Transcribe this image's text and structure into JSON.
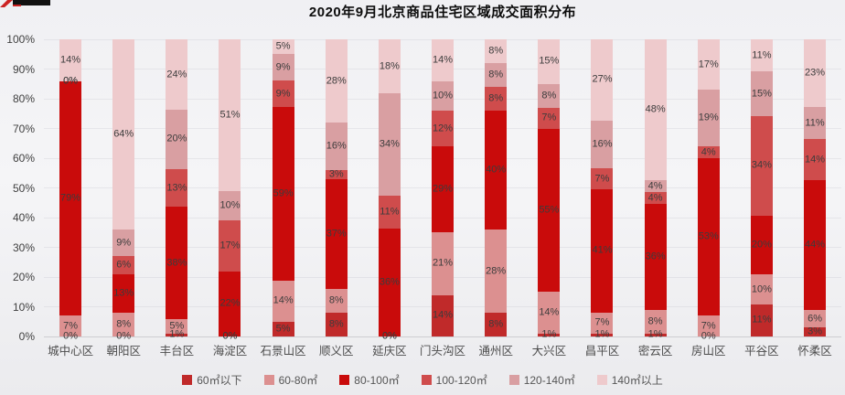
{
  "title": "2020年9月北京商品住宅区域成交面积分布",
  "y_axis": {
    "ticks": [
      "100%",
      "90%",
      "80%",
      "70%",
      "60%",
      "50%",
      "40%",
      "30%",
      "20%",
      "10%",
      "0%"
    ]
  },
  "legend": [
    {
      "label": "60㎡以下",
      "color": "#c02a2a"
    },
    {
      "label": "60-80㎡",
      "color": "#dc9090"
    },
    {
      "label": "80-100㎡",
      "color": "#c90b0b"
    },
    {
      "label": "100-120㎡",
      "color": "#cf4c4c"
    },
    {
      "label": "120-140㎡",
      "color": "#d99fa2"
    },
    {
      "label": "140㎡以上",
      "color": "#eecacc"
    }
  ],
  "decoration": {
    "corner_fragment_colors": [
      "#cc2222",
      "#111111"
    ]
  },
  "chart_data": {
    "type": "bar",
    "stacked": true,
    "percent": true,
    "title": "2020年9月北京商品住宅区域成交面积分布",
    "xlabel": "",
    "ylabel": "",
    "ylim": [
      0,
      100
    ],
    "grid": true,
    "legend_position": "bottom",
    "categories": [
      "城中心区",
      "朝阳区",
      "丰台区",
      "海淀区",
      "石景山区",
      "顺义区",
      "延庆区",
      "门头沟区",
      "通州区",
      "大兴区",
      "昌平区",
      "密云区",
      "房山区",
      "平谷区",
      "怀柔区"
    ],
    "series": [
      {
        "name": "60㎡以下",
        "color": "#c02a2a",
        "values": [
          0,
          0,
          1,
          0,
          5,
          8,
          0,
          14,
          8,
          1,
          1,
          1,
          0,
          11,
          3
        ]
      },
      {
        "name": "60-80㎡",
        "color": "#dc9090",
        "values": [
          7,
          8,
          5,
          0,
          14,
          8,
          0,
          21,
          28,
          14,
          7,
          8,
          7,
          10,
          6
        ]
      },
      {
        "name": "80-100㎡",
        "color": "#c90b0b",
        "values": [
          79,
          13,
          38,
          22,
          59,
          37,
          36,
          29,
          40,
          55,
          41,
          36,
          53,
          20,
          44
        ]
      },
      {
        "name": "100-120㎡",
        "color": "#cf4c4c",
        "values": [
          0,
          6,
          13,
          17,
          9,
          3,
          11,
          12,
          8,
          7,
          7,
          4,
          4,
          34,
          14
        ]
      },
      {
        "name": "120-140㎡",
        "color": "#d99fa2",
        "values": [
          0,
          9,
          20,
          10,
          9,
          16,
          34,
          10,
          8,
          8,
          16,
          4,
          19,
          15,
          11
        ]
      },
      {
        "name": "140㎡以上",
        "color": "#eecacc",
        "values": [
          14,
          64,
          24,
          51,
          5,
          28,
          18,
          14,
          8,
          15,
          27,
          48,
          17,
          11,
          23
        ]
      }
    ]
  }
}
